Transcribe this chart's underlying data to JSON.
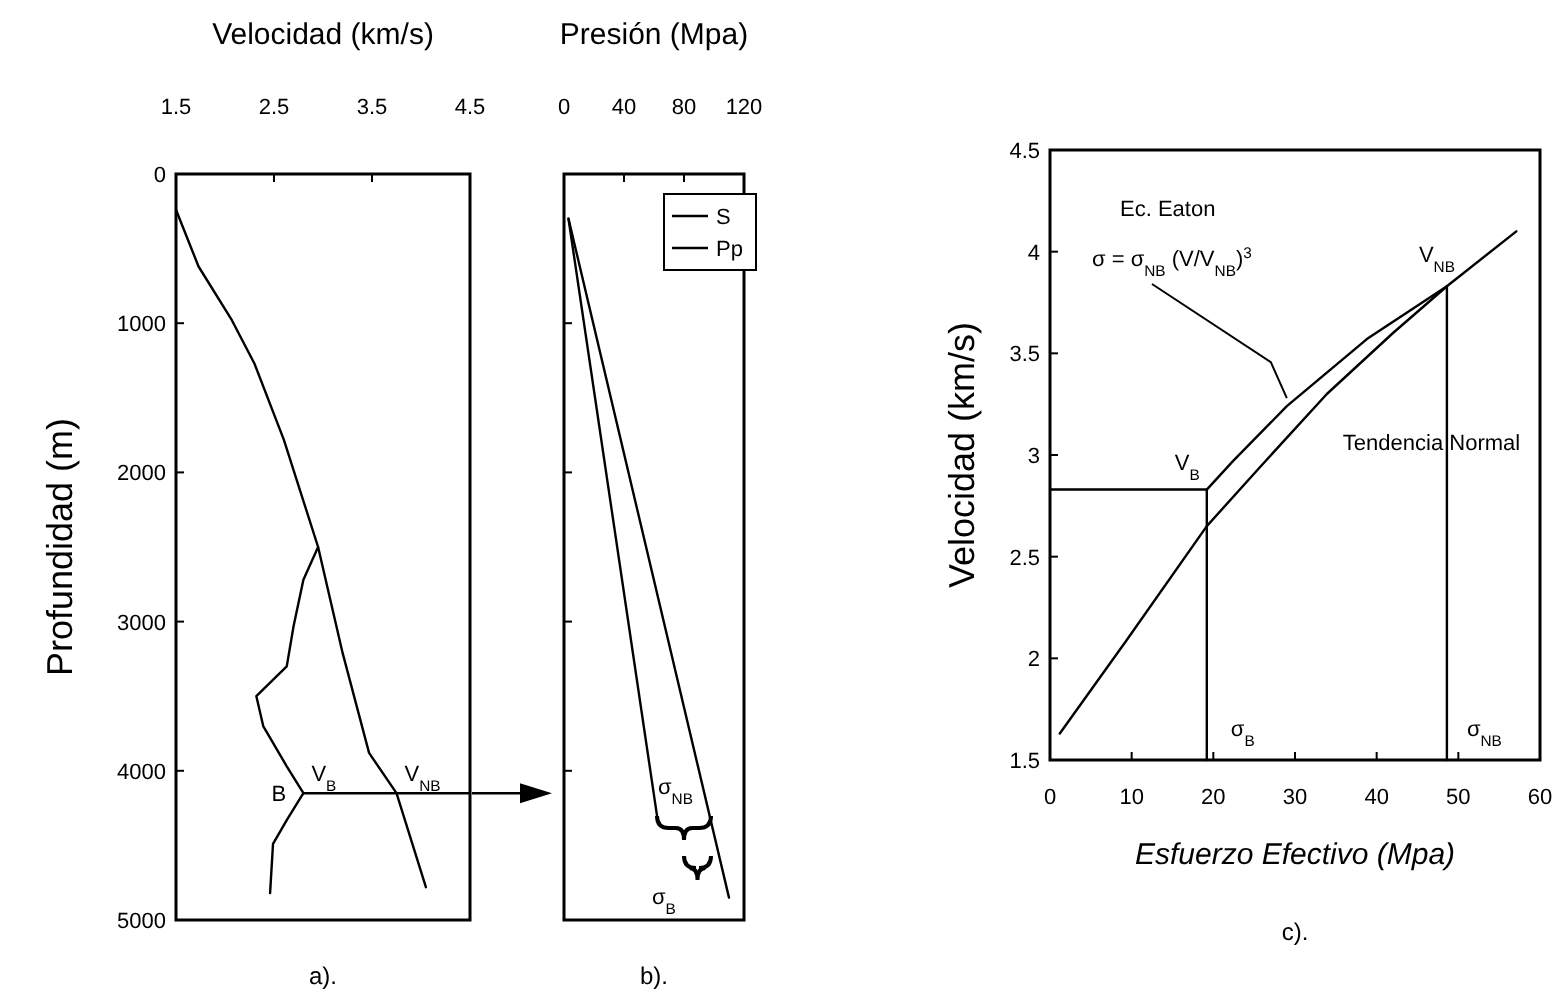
{
  "chart_data": [
    {
      "type": "line",
      "xlabel": "Velocidad (km/s)",
      "ylabel": "Profundidad (m)",
      "xlim": [
        1.5,
        4.5
      ],
      "xticks": [
        1.5,
        2.5,
        3.5,
        4.5
      ],
      "ylim": [
        5000,
        0
      ],
      "yticks": [
        0,
        1000,
        2000,
        3000,
        4000,
        5000
      ],
      "series": [
        {
          "color": "#000000",
          "x": [
            1.5,
            1.73,
            2.07,
            2.3,
            2.6,
            2.95,
            3.2,
            3.47,
            3.75,
            4.05
          ],
          "values": [
            240,
            620,
            980,
            1270,
            1780,
            2500,
            3210,
            3880,
            4150,
            4780
          ]
        },
        {
          "color": "#000000",
          "x": [
            2.95,
            2.8,
            2.7,
            2.63,
            2.32,
            2.39,
            2.63,
            2.8,
            2.63,
            2.49,
            2.46
          ],
          "values": [
            2500,
            2720,
            3030,
            3300,
            3500,
            3700,
            3970,
            4150,
            4330,
            4490,
            4820
          ]
        },
        {
          "color": "#000000",
          "x": [
            2.8,
            4.5
          ],
          "values": [
            4150,
            4150
          ]
        }
      ],
      "annotations": [
        {
          "text": "B",
          "x": 2.8,
          "y": 4150
        },
        {
          "text": "V$_{B}$",
          "x": 2.8,
          "y": 4150
        },
        {
          "text": "V$_{NB}$",
          "x": 3.75,
          "y": 4150
        },
        "a)."
      ]
    },
    {
      "type": "line",
      "xlabel": "Presión (Mpa)",
      "xlim": [
        0,
        120
      ],
      "xticks": [
        0,
        40,
        80,
        120
      ],
      "ylim": [
        5000,
        0
      ],
      "tick_labels": "x",
      "legend": "top right",
      "yticks": [
        {
          "value": 0,
          "label": null
        },
        {
          "value": 1000,
          "label": null
        },
        {
          "value": 2000,
          "label": null
        },
        {
          "value": 3000,
          "label": null
        },
        {
          "value": 4000,
          "label": null
        },
        {
          "value": 5000,
          "label": null
        }
      ],
      "series": [
        {
          "name": "S",
          "color": "#000000",
          "x": [
            3,
            110
          ],
          "values": [
            300,
            4850
          ]
        },
        {
          "name": "Pp",
          "color": "#000000",
          "x": [
            3,
            62
          ],
          "values": [
            300,
            4300
          ]
        }
      ],
      "annotations": [
        "σ$_{NB}$",
        "σ$_{B}$",
        "b)."
      ]
    },
    {
      "type": "line",
      "xlabel": "Esfuerzo Efectivo (Mpa)",
      "ylabel": "Velocidad (km/s)",
      "xlim": [
        0,
        60
      ],
      "xticks": [
        0,
        10,
        20,
        30,
        40,
        50,
        60
      ],
      "ylim": [
        1.5,
        4.5
      ],
      "yticks": [
        1.5,
        2,
        2.5,
        3,
        3.5,
        4,
        4.5
      ],
      "series": [
        {
          "color": "#000000",
          "x": [
            1.2,
            9.4,
            19.2,
            25.7,
            33.9,
            42,
            48.6,
            57.1
          ],
          "values": [
            1.63,
            2.09,
            2.65,
            2.94,
            3.3,
            3.6,
            3.83,
            4.1
          ]
        },
        {
          "color": "#000000",
          "x": [
            19.2,
            22.4,
            29,
            38.8,
            48.6
          ],
          "values": [
            2.83,
            2.97,
            3.24,
            3.57,
            3.83
          ]
        },
        {
          "color": "#000000",
          "x": [
            0,
            19.2,
            19.2
          ],
          "values": [
            2.83,
            2.83,
            1.5
          ]
        },
        {
          "color": "#000000",
          "x": [
            48.6,
            48.6
          ],
          "values": [
            3.83,
            1.5
          ]
        }
      ],
      "annotations": [
        "Ec. Eaton",
        {
          "text": "σ = σ$_{NB}$ (V/V$_{NB}$)$^{3}$",
          "x": 29,
          "y": 3.24
        },
        {
          "text": "V$_{NB}$",
          "x": 48.6,
          "y": 3.83
        },
        {
          "text": "V$_{B}$",
          "x": 19.2,
          "y": 2.83
        },
        {
          "text": "Tendencia Normal",
          "x": 33.9,
          "y": 3.3
        },
        {
          "text": "σ$_{B}$",
          "x": 19.2,
          "y": 1.5
        },
        {
          "text": "σ$_{NB}$",
          "x": 48.6,
          "y": 1.5
        },
        "c)."
      ]
    }
  ]
}
